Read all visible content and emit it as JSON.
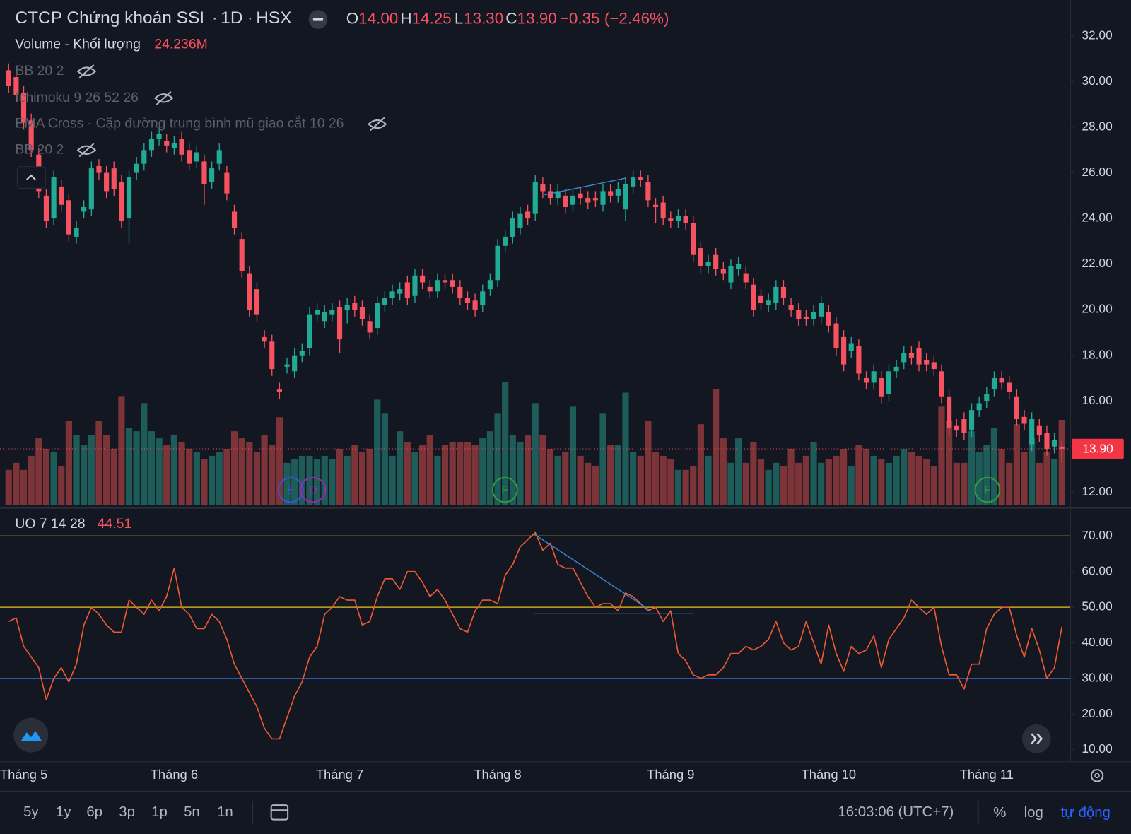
{
  "chart_data": {
    "type": "candlestick",
    "title": "CTCP Chứng khoán SSI",
    "interval": "1D",
    "exchange": "HSX",
    "ohlc_legend": [
      {
        "key": "O",
        "label": "14.00"
      },
      {
        "key": "H",
        "label": "14.25"
      },
      {
        "key": "L",
        "label": "13.30"
      },
      {
        "key": "C",
        "label": "13.90"
      }
    ],
    "change_label": "−0.35 (−2.46%)",
    "categories": [
      null,
      null,
      "Tháng 5",
      null,
      null,
      null,
      null,
      null,
      null,
      null,
      null,
      null,
      null,
      null,
      null,
      null,
      null,
      null,
      null,
      null,
      null,
      null,
      "Tháng 6",
      null,
      null,
      null,
      null,
      null,
      null,
      null,
      null,
      null,
      null,
      null,
      null,
      null,
      null,
      null,
      null,
      null,
      null,
      null,
      null,
      null,
      "Tháng 7",
      null,
      null,
      null,
      null,
      null,
      null,
      null,
      null,
      null,
      null,
      null,
      null,
      null,
      null,
      null,
      null,
      null,
      null,
      null,
      null,
      "Tháng 8",
      null,
      null,
      null,
      null,
      null,
      null,
      null,
      null,
      null,
      null,
      null,
      null,
      null,
      null,
      null,
      null,
      null,
      null,
      null,
      null,
      null,
      null,
      "Tháng 9",
      null,
      null,
      null,
      null,
      null,
      null,
      null,
      null,
      null,
      null,
      null,
      null,
      null,
      null,
      null,
      null,
      null,
      null,
      null,
      null,
      "Tháng 10",
      null,
      null,
      null,
      null,
      null,
      null,
      null,
      null,
      null,
      null,
      null,
      null,
      null,
      null,
      null,
      null,
      null,
      null,
      null,
      null,
      "Tháng 11",
      null,
      null,
      null,
      null,
      null,
      null,
      null,
      null,
      null,
      null
    ],
    "open": [
      30.5,
      30.2,
      29.5,
      28.3,
      26.8,
      25.0,
      24.0,
      25.4,
      24.8,
      23.2,
      24.3,
      24.4,
      26.3,
      26.0,
      26.2,
      25.6,
      24.0,
      26.0,
      26.4,
      27.0,
      27.5,
      27.4,
      27.1,
      27.5,
      27.0,
      26.5,
      26.5,
      25.6,
      26.4,
      26.0,
      24.3,
      23.1,
      21.6,
      20.9,
      18.8,
      18.6,
      16.5,
      17.5,
      17.3,
      18.0,
      18.3,
      19.8,
      19.5,
      19.8,
      20.1,
      20.0,
      20.3,
      20.1,
      19.5,
      19.2,
      20.2,
      20.5,
      20.7,
      21.2,
      20.6,
      21.5,
      21.0,
      20.8,
      21.3,
      21.3,
      21.0,
      20.5,
      20.4,
      20.2,
      20.9,
      21.3,
      22.8,
      23.2,
      23.6,
      24.3,
      24.2,
      25.5,
      25.2,
      24.9,
      25.0,
      24.6,
      25.1,
      24.9,
      24.9,
      24.6,
      25.2,
      25.0,
      24.4,
      25.4,
      25.8,
      25.6,
      24.6,
      24.7,
      24.0,
      23.9,
      24.1,
      23.8,
      22.7,
      21.9,
      22.4,
      21.8,
      21.2,
      21.8,
      21.6,
      21.1,
      20.6,
      20.2,
      20.3,
      21.0,
      20.2,
      20.0,
      19.7,
      19.6,
      19.7,
      19.9,
      19.4,
      18.8,
      18.2,
      18.4,
      17.0,
      16.8,
      17.0,
      16.3,
      17.3,
      17.7,
      18.1,
      18.3,
      17.8,
      17.7,
      17.3,
      16.2,
      14.9,
      15.2,
      14.7,
      15.6,
      16.0,
      16.5,
      17.0,
      16.8,
      16.2,
      15.3,
      14.1,
      14.9,
      14.6,
      14.0,
      14.0
    ],
    "high": [
      30.8,
      30.5,
      29.8,
      28.6,
      27.1,
      25.3,
      26.1,
      25.7,
      25.1,
      23.9,
      24.8,
      26.5,
      26.6,
      26.3,
      26.5,
      25.9,
      26.1,
      26.7,
      27.3,
      27.8,
      28.0,
      27.7,
      27.6,
      27.8,
      27.3,
      27.2,
      26.8,
      26.5,
      27.3,
      26.3,
      24.6,
      23.4,
      21.9,
      21.2,
      19.1,
      18.9,
      16.8,
      17.9,
      18.3,
      18.5,
      20.1,
      20.3,
      20.2,
      20.3,
      20.4,
      20.5,
      20.6,
      20.4,
      19.8,
      20.6,
      20.8,
      21.1,
      21.2,
      21.5,
      21.8,
      21.8,
      21.3,
      21.6,
      21.6,
      21.6,
      21.3,
      20.8,
      20.7,
      21.1,
      21.6,
      23.1,
      23.5,
      24.3,
      24.5,
      24.6,
      25.9,
      25.8,
      25.5,
      25.5,
      25.3,
      25.3,
      25.4,
      25.2,
      25.2,
      25.5,
      25.5,
      25.6,
      25.8,
      26.1,
      26.1,
      25.9,
      24.9,
      25.0,
      24.3,
      24.4,
      24.4,
      24.1,
      23.0,
      22.4,
      22.7,
      22.1,
      22.2,
      22.3,
      21.9,
      21.4,
      20.9,
      20.7,
      21.3,
      21.3,
      20.5,
      20.3,
      20.0,
      20.2,
      20.6,
      20.2,
      19.7,
      19.1,
      18.8,
      18.7,
      17.3,
      17.6,
      17.3,
      17.6,
      17.8,
      18.4,
      18.4,
      18.6,
      18.1,
      18.0,
      17.6,
      16.5,
      15.2,
      15.5,
      15.9,
      16.2,
      16.6,
      17.3,
      17.3,
      17.1,
      16.5,
      15.6,
      15.5,
      15.2,
      14.9,
      14.6,
      14.25
    ],
    "low": [
      29.5,
      29.1,
      27.9,
      26.7,
      24.9,
      23.6,
      23.7,
      24.3,
      23.0,
      22.9,
      24.0,
      24.1,
      25.7,
      24.9,
      25.0,
      23.6,
      22.9,
      25.7,
      26.1,
      26.7,
      27.2,
      26.9,
      26.8,
      26.5,
      26.1,
      26.2,
      24.6,
      25.3,
      26.1,
      24.8,
      23.3,
      21.4,
      19.7,
      19.5,
      18.3,
      17.1,
      16.1,
      17.2,
      17.0,
      17.7,
      18.0,
      19.5,
      19.2,
      19.5,
      18.1,
      19.4,
      19.7,
      19.3,
      18.7,
      18.9,
      19.9,
      20.2,
      20.4,
      20.2,
      20.3,
      20.9,
      20.5,
      20.5,
      20.9,
      20.7,
      20.2,
      20.0,
      19.7,
      19.9,
      20.6,
      21.0,
      22.5,
      22.9,
      23.3,
      23.7,
      23.9,
      24.9,
      24.6,
      24.6,
      24.2,
      24.3,
      24.6,
      24.4,
      24.5,
      24.3,
      24.7,
      24.7,
      23.9,
      25.1,
      25.4,
      24.5,
      23.8,
      23.7,
      23.6,
      23.6,
      23.5,
      22.1,
      21.6,
      21.6,
      21.5,
      21.3,
      20.9,
      21.5,
      20.9,
      19.7,
      20.0,
      19.9,
      20.0,
      20.2,
      19.7,
      19.3,
      19.3,
      19.3,
      19.4,
      19.0,
      18.0,
      17.3,
      17.9,
      16.9,
      16.5,
      16.5,
      15.9,
      16.0,
      17.0,
      17.4,
      17.6,
      17.3,
      17.3,
      17.1,
      15.9,
      14.5,
      14.4,
      14.3,
      14.4,
      15.3,
      15.7,
      16.2,
      16.5,
      16.1,
      14.9,
      14.7,
      13.8,
      14.2,
      13.6,
      13.7,
      13.3
    ],
    "close": [
      29.8,
      29.4,
      28.2,
      27.0,
      25.2,
      23.9,
      25.8,
      24.6,
      23.3,
      23.6,
      24.5,
      26.2,
      26.0,
      25.2,
      25.3,
      23.9,
      25.8,
      26.4,
      27.0,
      27.5,
      27.7,
      27.2,
      27.3,
      26.8,
      26.4,
      26.9,
      25.5,
      26.2,
      27.0,
      25.1,
      23.6,
      21.7,
      20.0,
      19.8,
      18.6,
      17.4,
      16.4,
      17.6,
      18.0,
      18.2,
      19.8,
      20.0,
      19.9,
      20.0,
      18.7,
      20.2,
      20.0,
      19.6,
      19.0,
      20.3,
      20.5,
      20.8,
      20.9,
      20.5,
      21.5,
      21.2,
      20.8,
      21.3,
      21.2,
      21.0,
      20.5,
      20.3,
      20.0,
      20.8,
      21.3,
      22.8,
      23.2,
      24.0,
      24.2,
      24.0,
      25.6,
      25.2,
      24.9,
      25.2,
      24.5,
      25.0,
      24.9,
      24.7,
      24.8,
      25.2,
      25.0,
      25.3,
      25.5,
      25.8,
      25.7,
      24.8,
      24.5,
      24.0,
      23.9,
      24.1,
      23.8,
      22.4,
      21.9,
      22.1,
      21.8,
      21.6,
      21.9,
      22.0,
      21.2,
      20.0,
      20.3,
      20.4,
      21.0,
      20.5,
      20.0,
      19.6,
      19.6,
      19.9,
      20.3,
      19.3,
      18.3,
      17.6,
      18.5,
      17.2,
      16.8,
      17.3,
      16.2,
      17.3,
      17.5,
      18.1,
      17.9,
      17.6,
      17.6,
      17.4,
      16.2,
      14.8,
      14.7,
      14.6,
      15.6,
      15.9,
      16.3,
      17.0,
      16.8,
      16.4,
      15.2,
      15.0,
      15.2,
      14.5,
      13.9,
      14.3,
      13.9
    ],
    "volume": [
      10,
      12,
      10,
      14,
      19,
      16,
      15,
      11,
      24,
      20,
      17,
      20,
      24,
      20,
      16,
      31,
      22,
      21,
      29,
      21,
      19,
      17,
      20,
      18,
      16,
      15,
      13,
      14,
      15,
      16,
      21,
      19,
      18,
      15,
      20,
      17,
      25,
      12,
      13,
      14,
      14,
      13,
      14,
      13,
      16,
      14,
      17,
      15,
      16,
      30,
      26,
      14,
      21,
      18,
      15,
      17,
      20,
      14,
      17,
      18,
      18,
      18,
      17,
      19,
      21,
      26,
      35,
      20,
      18,
      20,
      29,
      20,
      16,
      14,
      15,
      28,
      14,
      12,
      11,
      26,
      17,
      17,
      32,
      15,
      14,
      24,
      15,
      14,
      13,
      10,
      10,
      11,
      23,
      14,
      33,
      19,
      12,
      19,
      12,
      18,
      13,
      10,
      12,
      11,
      16,
      12,
      14,
      18,
      12,
      13,
      14,
      16,
      11,
      17,
      16,
      14,
      13,
      12,
      14,
      16,
      15,
      14,
      13,
      11,
      28,
      24,
      12,
      12,
      21,
      15,
      17,
      22,
      16,
      12,
      23,
      15,
      19,
      12,
      15,
      13,
      24.236
    ],
    "up_color": "#22ab94",
    "down_color": "#f7525f",
    "volume_up_color": "#1e5c59",
    "volume_down_color": "#7d3439",
    "ylim": [
      11.34,
      33.58
    ],
    "yticks": [
      {
        "value": 12,
        "label": "12.00"
      },
      {
        "value": 14,
        "label": "14.00"
      },
      {
        "value": 16,
        "label": "16.00"
      },
      {
        "value": 18,
        "label": "18.00"
      },
      {
        "value": 20,
        "label": "20.00"
      },
      {
        "value": 22,
        "label": "22.00"
      },
      {
        "value": 24,
        "label": "24.00"
      },
      {
        "value": 26,
        "label": "26.00"
      },
      {
        "value": 28,
        "label": "28.00"
      },
      {
        "value": 30,
        "label": "30.00"
      },
      {
        "value": 32,
        "label": "32.00"
      }
    ],
    "volume_ylim": [
      0,
      50
    ],
    "last_price": {
      "value": 13.9,
      "label": "13.90"
    },
    "grid": false,
    "uo": {
      "name": "UO 7 14 28",
      "value_label": "44.51",
      "color": "#f05a32",
      "values": [
        46,
        47,
        39,
        36,
        33,
        24,
        30,
        33,
        29,
        34,
        45,
        50,
        48,
        45,
        43,
        43,
        52,
        50,
        48,
        52,
        49,
        53,
        61,
        50,
        48,
        44,
        44,
        48,
        46,
        41,
        34,
        30,
        26,
        22,
        16,
        13,
        13,
        19,
        25,
        29,
        36,
        39,
        48,
        50,
        53,
        52,
        52,
        45,
        46,
        53,
        58,
        58,
        55,
        60,
        60,
        57,
        53,
        55,
        52,
        48,
        44,
        43,
        49,
        52,
        52,
        51,
        59,
        62,
        67,
        69,
        71,
        66,
        68,
        62,
        61,
        61,
        57,
        53,
        50,
        51,
        51,
        49,
        54,
        53,
        51,
        49,
        50,
        46,
        49,
        37,
        35,
        31,
        30,
        31,
        31,
        33,
        37,
        37,
        39,
        38,
        39,
        41,
        46,
        40,
        38,
        39,
        46,
        40,
        34,
        45,
        37,
        32,
        39,
        37,
        38,
        42,
        33,
        41,
        44,
        47,
        52,
        50,
        48,
        50,
        39,
        31,
        31,
        27,
        34,
        34,
        44,
        48,
        50,
        50,
        42,
        36,
        44,
        38,
        30,
        33,
        44.51
      ],
      "ylim": [
        6.76,
        77.7
      ],
      "yticks": [
        {
          "value": 10,
          "label": "10.00"
        },
        {
          "value": 20,
          "label": "20.00"
        },
        {
          "value": 30,
          "label": "30.00"
        },
        {
          "value": 40,
          "label": "40.00"
        },
        {
          "value": 50,
          "label": "50.00"
        },
        {
          "value": 60,
          "label": "60.00"
        },
        {
          "value": 70,
          "label": "70.00"
        }
      ],
      "levels": [
        {
          "value": 70,
          "color": "#e8c21c"
        },
        {
          "value": 50,
          "color": "#e8c21c"
        },
        {
          "value": 30,
          "color": "#3a6fd8"
        }
      ]
    },
    "events": [
      {
        "label": "E",
        "color": "#3f51d6"
      },
      {
        "label": "D",
        "color": "#9c27b0"
      },
      {
        "label": "F",
        "color": "#2e9e3a"
      },
      {
        "label": "F",
        "color": "#2e9e3a"
      }
    ]
  },
  "indicators": [
    {
      "name": "Volume - Khối lượng",
      "value_label": "24.236M"
    },
    {
      "name": "BB 20 2"
    },
    {
      "name": "Ichimoku 9 26 52 26"
    },
    {
      "name": "EMA Cross - Cặp đường trung bình mũ giao cắt 10 26"
    },
    {
      "name": "BB 20 2"
    }
  ],
  "toolbar": {
    "ranges": [
      "5y",
      "1y",
      "6p",
      "3p",
      "1p",
      "5n",
      "1n"
    ],
    "clock": "16:03:06 (UTC+7)",
    "options": [
      "%",
      "log",
      "tự động"
    ]
  }
}
